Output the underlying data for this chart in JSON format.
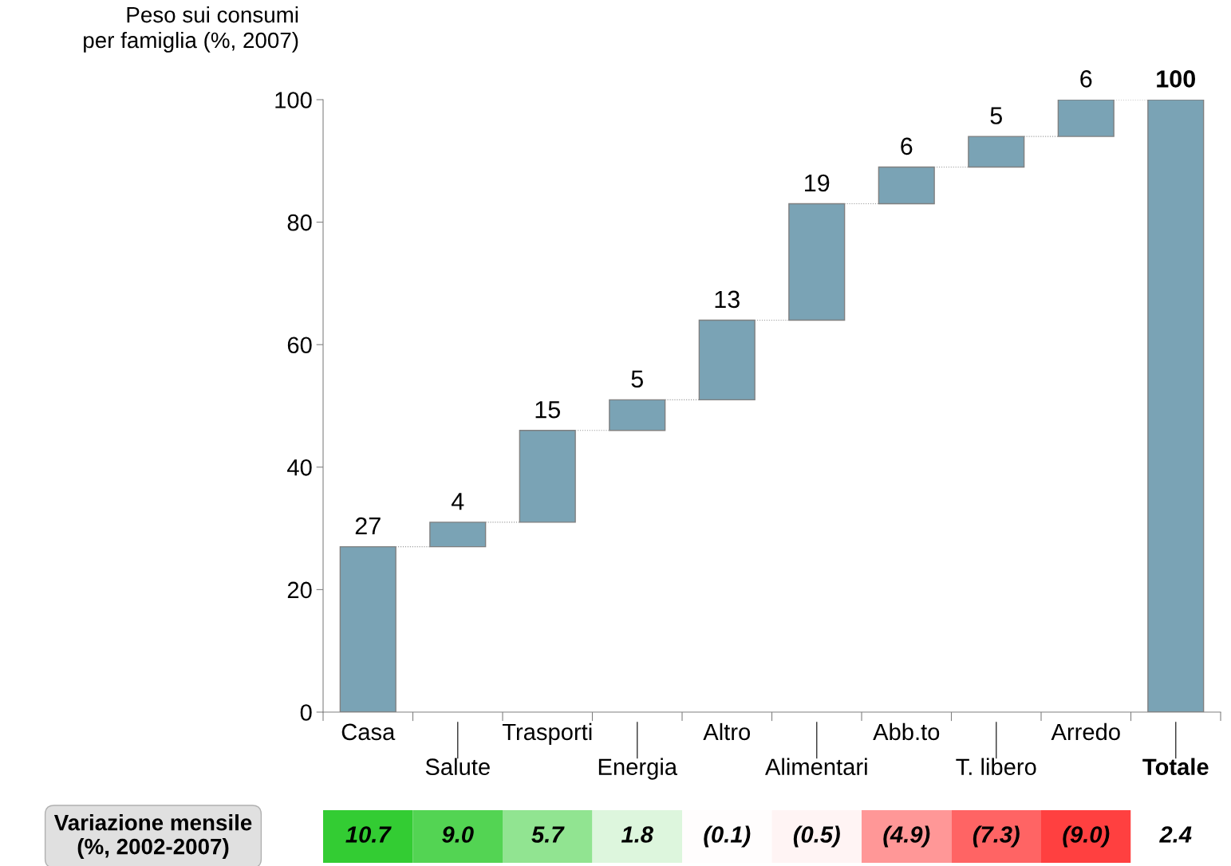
{
  "chart_data": [
    {
      "type": "bar",
      "ylabel": "Peso sui consumi\nper famiglia (%, 2007)",
      "categories": [
        "Casa",
        "Salute",
        "Trasporti",
        "Energia",
        "Altro",
        "Alimentari",
        "Abb.to",
        "T. libero",
        "Arredo",
        "Totale"
      ],
      "values": [
        27,
        4,
        15,
        5,
        13,
        19,
        6,
        5,
        6,
        100
      ],
      "base": [
        0,
        27,
        31,
        46,
        51,
        64,
        83,
        89,
        94,
        0
      ],
      "color": "#7aa3b5",
      "ylim": [
        0,
        100
      ],
      "yticks": [
        0,
        20,
        40,
        60,
        80,
        100
      ],
      "data_labels": true,
      "grid": false,
      "legend": false
    },
    {
      "type": "heatmap",
      "categories": [
        null,
        null,
        null,
        null,
        null,
        null,
        null,
        null,
        null
      ],
      "y_categories": [
        "Variazione mensile\n(%, 2002-2007)"
      ],
      "cells": [
        [
          10.7,
          9.0,
          5.7,
          1.8,
          -0.1,
          -0.5,
          -4.9,
          -7.3,
          -9.0
        ]
      ],
      "cell_labels": [
        [
          "10.7",
          "9.0",
          "5.7",
          "1.8",
          "(0.1)",
          "(0.5)",
          "(4.9)",
          "(7.3)",
          "(9.0)"
        ]
      ],
      "annotations": [
        "2.4"
      ]
    }
  ]
}
